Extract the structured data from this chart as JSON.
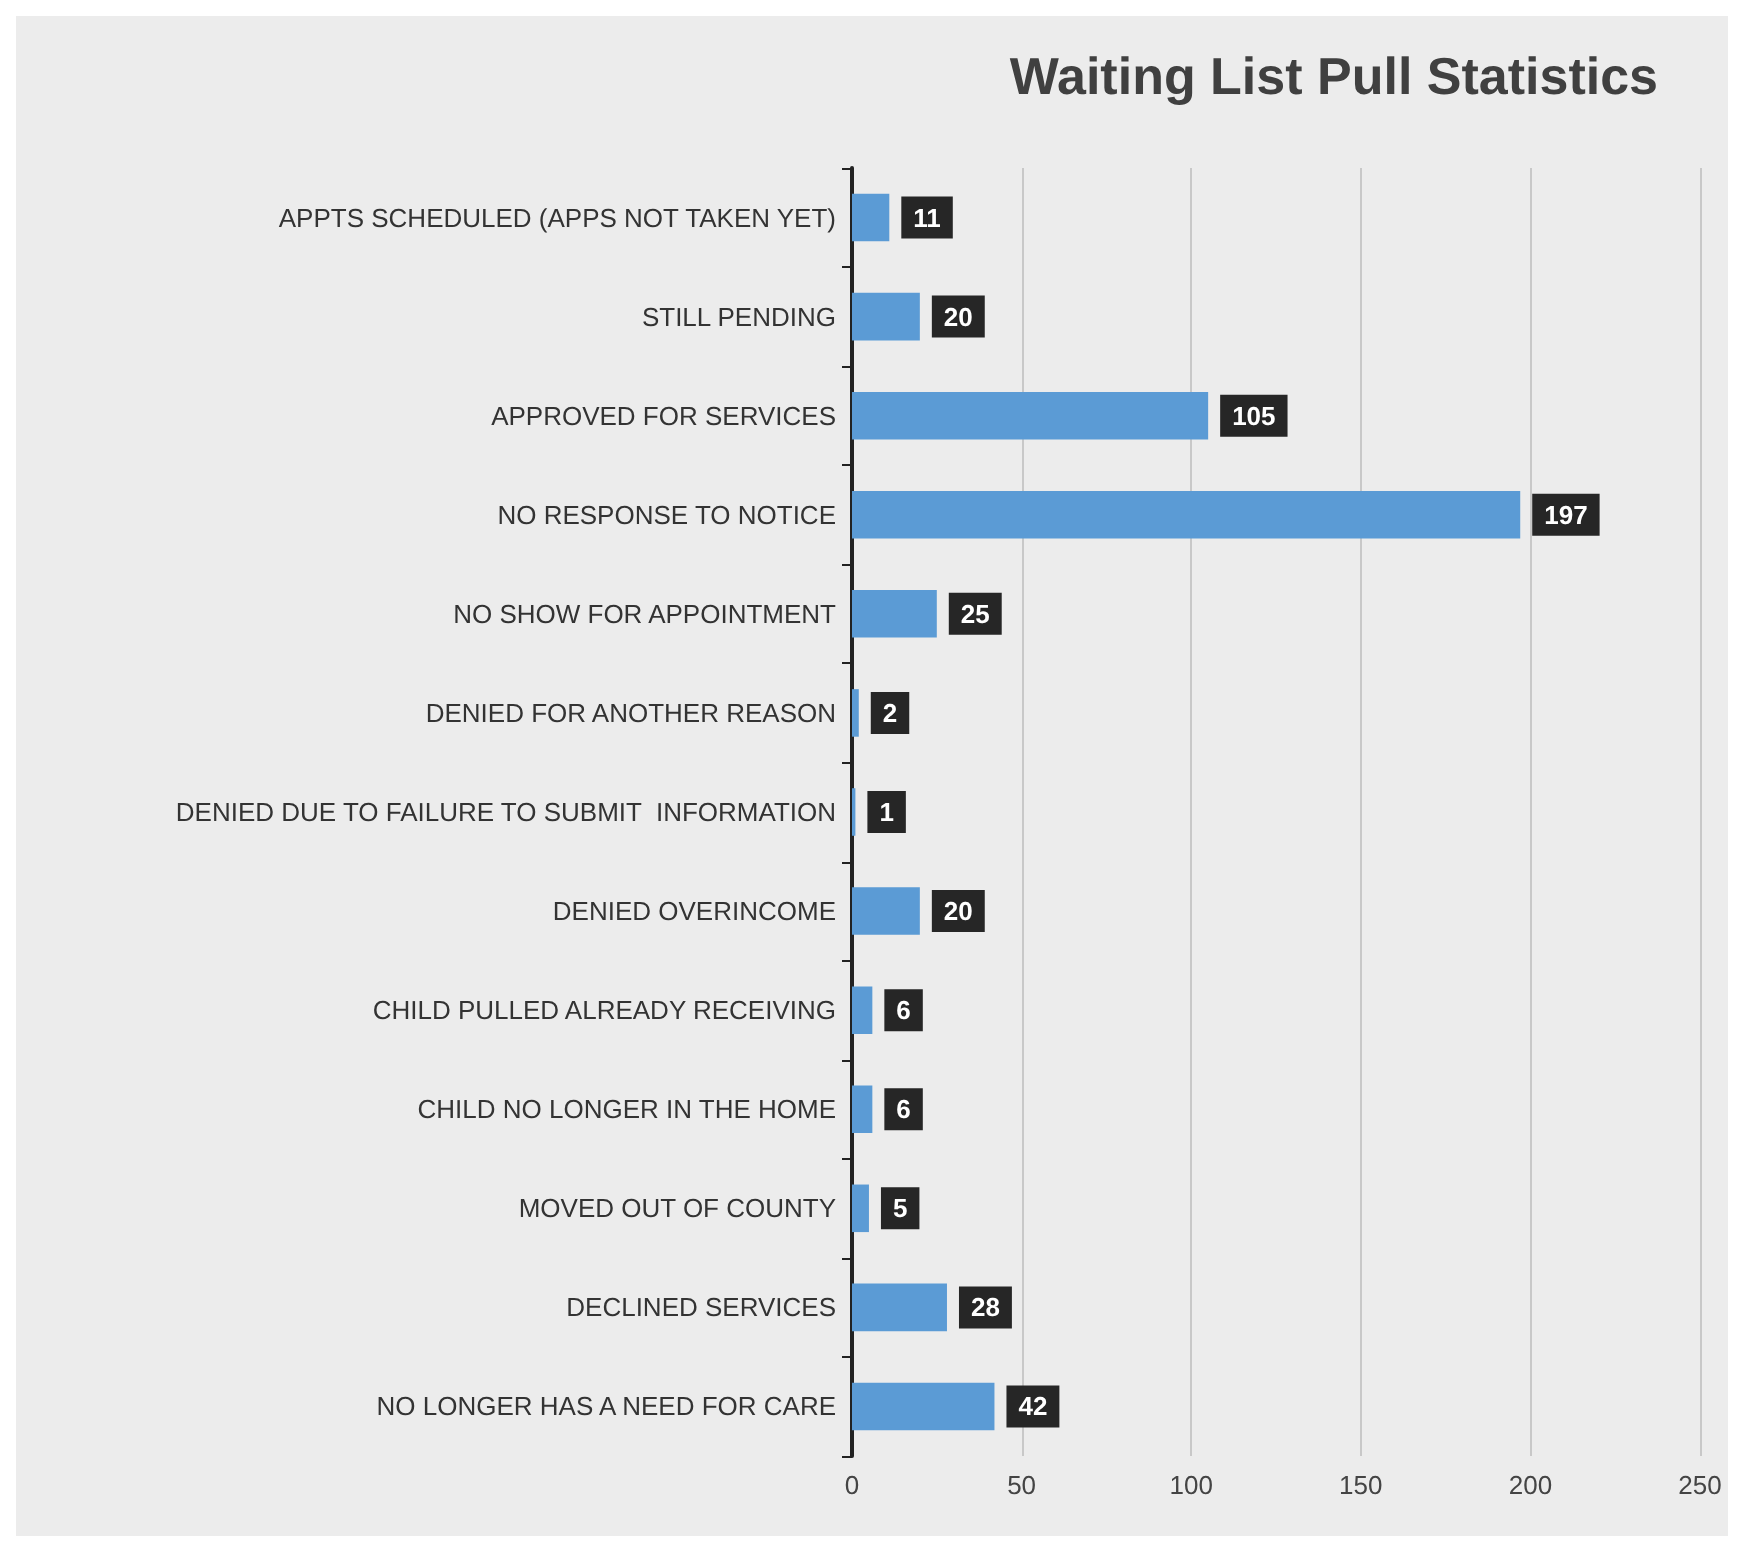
{
  "chart_data": {
    "type": "bar",
    "title": "Waiting List Pull Statistics",
    "orientation": "horizontal",
    "categories": [
      "APPTS SCHEDULED (APPS NOT TAKEN YET)",
      "STILL PENDING",
      "APPROVED FOR SERVICES",
      "NO RESPONSE TO NOTICE",
      "NO SHOW FOR APPOINTMENT",
      "DENIED FOR ANOTHER REASON",
      "DENIED DUE TO FAILURE TO SUBMIT  INFORMATION",
      "DENIED OVERINCOME",
      "CHILD PULLED ALREADY RECEIVING",
      "CHILD NO LONGER IN THE HOME",
      "MOVED OUT OF COUNTY",
      "DECLINED SERVICES",
      "NO LONGER HAS A NEED FOR CARE"
    ],
    "values": [
      11,
      20,
      105,
      197,
      25,
      2,
      1,
      20,
      6,
      6,
      5,
      28,
      42
    ],
    "color": "#5b9bd5",
    "xlim": [
      0,
      250
    ],
    "xticks": [
      0,
      50,
      100,
      150,
      200,
      250
    ],
    "grid": "x",
    "data_labels": true
  }
}
